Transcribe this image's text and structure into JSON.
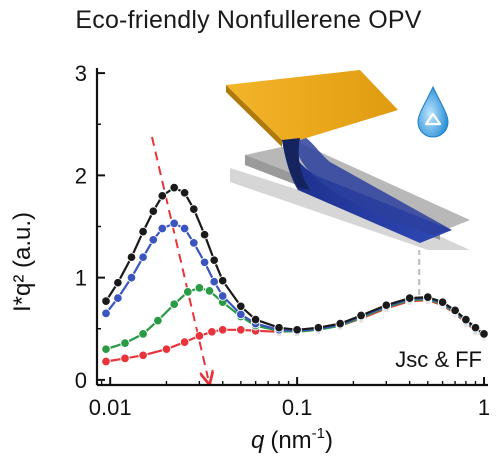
{
  "title": "Eco-friendly Nonfullerene OPV",
  "chart_data": {
    "type": "scatter",
    "title": "Eco-friendly Nonfullerene OPV",
    "xlabel_main": "q",
    "xlabel_unit": "(nm",
    "xlabel_exp": "-1",
    "xlabel_close": ")",
    "ylabel": "I*q² (a.u.)",
    "xscale": "log",
    "xlim": [
      0.0085,
      1.05
    ],
    "ylim": [
      -0.05,
      3.05
    ],
    "xticks": [
      {
        "value": 0.01,
        "label": "0.01"
      },
      {
        "value": 0.1,
        "label": "0.1"
      },
      {
        "value": 1,
        "label": "1"
      }
    ],
    "yticks": [
      {
        "value": 0,
        "label": "0"
      },
      {
        "value": 1,
        "label": "1"
      },
      {
        "value": 2,
        "label": "2"
      },
      {
        "value": 3,
        "label": "3"
      }
    ],
    "annotation": "Jsc & FF",
    "series": [
      {
        "color": "#e8333a",
        "points": [
          [
            0.0095,
            0.18
          ],
          [
            0.012,
            0.21
          ],
          [
            0.015,
            0.24
          ],
          [
            0.02,
            0.3
          ],
          [
            0.025,
            0.37
          ],
          [
            0.03,
            0.43
          ],
          [
            0.035,
            0.47
          ],
          [
            0.04,
            0.49
          ],
          [
            0.05,
            0.49
          ],
          [
            0.06,
            0.48
          ],
          [
            0.08,
            0.47
          ],
          [
            0.1,
            0.48
          ],
          [
            0.13,
            0.5
          ],
          [
            0.17,
            0.53
          ],
          [
            0.22,
            0.6
          ],
          [
            0.3,
            0.7
          ],
          [
            0.4,
            0.77
          ],
          [
            0.5,
            0.78
          ],
          [
            0.6,
            0.73
          ],
          [
            0.7,
            0.65
          ],
          [
            0.8,
            0.56
          ],
          [
            0.9,
            0.48
          ],
          [
            1.0,
            0.42
          ]
        ]
      },
      {
        "color": "#2a9a45",
        "points": [
          [
            0.0095,
            0.3
          ],
          [
            0.012,
            0.36
          ],
          [
            0.015,
            0.45
          ],
          [
            0.018,
            0.58
          ],
          [
            0.022,
            0.74
          ],
          [
            0.026,
            0.86
          ],
          [
            0.03,
            0.9
          ],
          [
            0.034,
            0.87
          ],
          [
            0.04,
            0.76
          ],
          [
            0.05,
            0.62
          ],
          [
            0.06,
            0.53
          ],
          [
            0.08,
            0.48
          ],
          [
            0.1,
            0.47
          ],
          [
            0.13,
            0.49
          ],
          [
            0.17,
            0.53
          ],
          [
            0.22,
            0.61
          ],
          [
            0.3,
            0.71
          ],
          [
            0.4,
            0.78
          ],
          [
            0.5,
            0.79
          ],
          [
            0.6,
            0.74
          ],
          [
            0.7,
            0.66
          ],
          [
            0.8,
            0.57
          ],
          [
            0.9,
            0.49
          ],
          [
            1.0,
            0.43
          ]
        ]
      },
      {
        "color": "#3a55c0",
        "points": [
          [
            0.0095,
            0.65
          ],
          [
            0.011,
            0.8
          ],
          [
            0.013,
            1.0
          ],
          [
            0.015,
            1.2
          ],
          [
            0.017,
            1.37
          ],
          [
            0.019,
            1.48
          ],
          [
            0.022,
            1.53
          ],
          [
            0.025,
            1.48
          ],
          [
            0.028,
            1.34
          ],
          [
            0.032,
            1.15
          ],
          [
            0.036,
            0.96
          ],
          [
            0.04,
            0.82
          ],
          [
            0.05,
            0.64
          ],
          [
            0.06,
            0.55
          ],
          [
            0.08,
            0.49
          ],
          [
            0.1,
            0.48
          ],
          [
            0.13,
            0.5
          ],
          [
            0.17,
            0.54
          ],
          [
            0.22,
            0.62
          ],
          [
            0.3,
            0.72
          ],
          [
            0.4,
            0.79
          ],
          [
            0.5,
            0.8
          ],
          [
            0.6,
            0.75
          ],
          [
            0.7,
            0.67
          ],
          [
            0.8,
            0.58
          ],
          [
            0.9,
            0.5
          ],
          [
            1.0,
            0.44
          ]
        ]
      },
      {
        "color": "#1a1a1a",
        "points": [
          [
            0.0095,
            0.77
          ],
          [
            0.011,
            0.95
          ],
          [
            0.013,
            1.2
          ],
          [
            0.015,
            1.45
          ],
          [
            0.017,
            1.65
          ],
          [
            0.019,
            1.8
          ],
          [
            0.022,
            1.88
          ],
          [
            0.025,
            1.83
          ],
          [
            0.028,
            1.67
          ],
          [
            0.032,
            1.42
          ],
          [
            0.036,
            1.17
          ],
          [
            0.04,
            0.97
          ],
          [
            0.05,
            0.72
          ],
          [
            0.06,
            0.59
          ],
          [
            0.08,
            0.51
          ],
          [
            0.1,
            0.49
          ],
          [
            0.13,
            0.51
          ],
          [
            0.17,
            0.55
          ],
          [
            0.22,
            0.63
          ],
          [
            0.3,
            0.73
          ],
          [
            0.4,
            0.8
          ],
          [
            0.5,
            0.81
          ],
          [
            0.6,
            0.76
          ],
          [
            0.7,
            0.68
          ],
          [
            0.8,
            0.59
          ],
          [
            0.9,
            0.51
          ],
          [
            1.0,
            0.45
          ]
        ]
      }
    ]
  }
}
